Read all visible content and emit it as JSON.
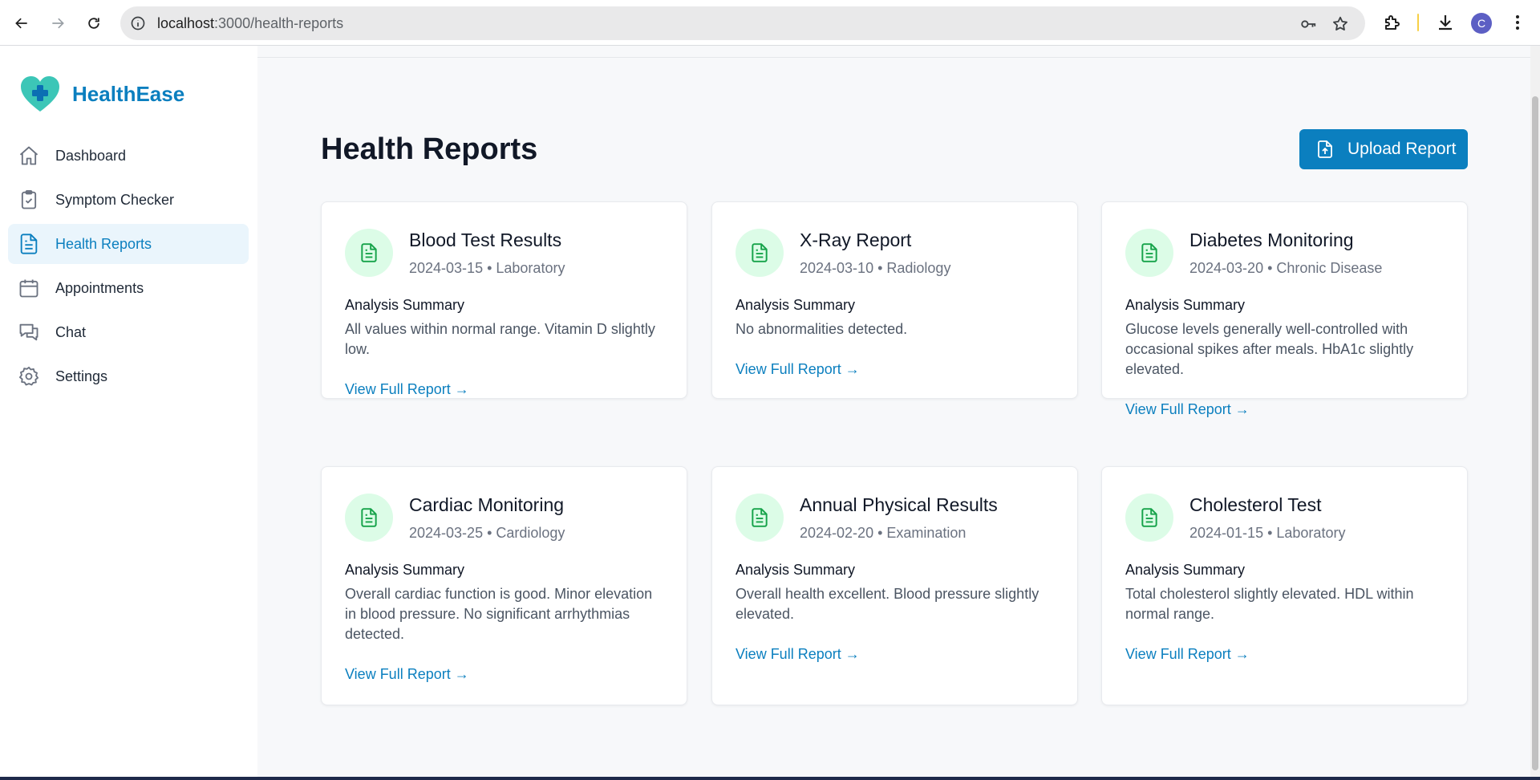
{
  "browser": {
    "url_host": "localhost",
    "url_path": ":3000/health-reports",
    "profile_initial": "C",
    "icons": [
      "back-arrow-icon",
      "forward-arrow-icon",
      "reload-icon",
      "site-info-icon",
      "key-icon",
      "star-icon",
      "extensions-icon",
      "download-icon",
      "more-vert-icon"
    ]
  },
  "app": {
    "name": "HealthEase",
    "brand_color": "#0b7fbf",
    "accent_green": "#16a34a"
  },
  "sidebar": {
    "items": [
      {
        "label": "Dashboard",
        "icon": "home-icon",
        "active": false
      },
      {
        "label": "Symptom Checker",
        "icon": "clipboard-check-icon",
        "active": false
      },
      {
        "label": "Health Reports",
        "icon": "file-text-icon",
        "active": true
      },
      {
        "label": "Appointments",
        "icon": "calendar-icon",
        "active": false
      },
      {
        "label": "Chat",
        "icon": "chat-bubbles-icon",
        "active": false
      },
      {
        "label": "Settings",
        "icon": "gear-icon",
        "active": false
      }
    ]
  },
  "main": {
    "title": "Health Reports",
    "upload_label": "Upload Report",
    "reports": [
      {
        "title": "Blood Test Results",
        "date": "2024-03-15",
        "category": "Laboratory",
        "summary_label": "Analysis Summary",
        "summary": "All values within normal range. Vitamin D slightly low.",
        "link": "View Full Report →"
      },
      {
        "title": "X-Ray Report",
        "date": "2024-03-10",
        "category": "Radiology",
        "summary_label": "Analysis Summary",
        "summary": "No abnormalities detected.",
        "link": "View Full Report →"
      },
      {
        "title": "Diabetes Monitoring",
        "date": "2024-03-20",
        "category": "Chronic Disease",
        "summary_label": "Analysis Summary",
        "summary": "Glucose levels generally well-controlled with occasional spikes after meals. HbA1c slightly elevated.",
        "link": "View Full Report →"
      },
      {
        "title": "Cardiac Monitoring",
        "date": "2024-03-25",
        "category": "Cardiology",
        "summary_label": "Analysis Summary",
        "summary": "Overall cardiac function is good. Minor elevation in blood pressure. No significant arrhythmias detected.",
        "link": "View Full Report →"
      },
      {
        "title": "Annual Physical Results",
        "date": "2024-02-20",
        "category": "Examination",
        "summary_label": "Analysis Summary",
        "summary": "Overall health excellent. Blood pressure slightly elevated.",
        "link": "View Full Report →"
      },
      {
        "title": "Cholesterol Test",
        "date": "2024-01-15",
        "category": "Laboratory",
        "summary_label": "Analysis Summary",
        "summary": "Total cholesterol slightly elevated. HDL within normal range.",
        "link": "View Full Report →"
      }
    ]
  }
}
